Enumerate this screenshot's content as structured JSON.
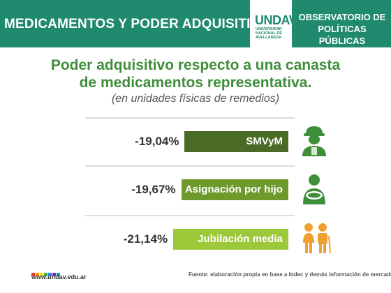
{
  "header": {
    "title": "MEDICAMENTOS Y PODER ADQUISITIVO",
    "logo_mark": "UNDAV",
    "logo_text": "UNIVERSIDAD\nNACIONAL DE\nAVELLANEDA",
    "observatorio": "OBSERVATORIO DE POLÍTICAS PÚBLICAS"
  },
  "chart_data": {
    "type": "bar",
    "orientation": "horizontal",
    "title_line1": "Poder adquisitivo respecto a una canasta",
    "title_line2": "de medicamentos representativa.",
    "subtitle": "(en unidades físicas de remedios)",
    "categories": [
      "SMVyM",
      "Asignación por hijo",
      "Jubilación media"
    ],
    "values": [
      -19.04,
      -19.67,
      -21.14
    ],
    "value_labels": [
      "-19,04%",
      "-19,67%",
      "-21,14%"
    ],
    "colors": [
      "#4a6b26",
      "#6e9a2c",
      "#9cc83a"
    ],
    "icons": [
      "worker-icon",
      "mother-child-icon",
      "elderly-couple-icon"
    ]
  },
  "footer": {
    "url": "www.undav.edu.ar",
    "source": "Fuente: elaboración propia en base a Indec y demás información de mercado.",
    "dot_colors": [
      "#e53935",
      "#fb8c00",
      "#fdd835",
      "#43a047",
      "#1e88e5",
      "#8e24aa",
      "#00acc1"
    ]
  }
}
